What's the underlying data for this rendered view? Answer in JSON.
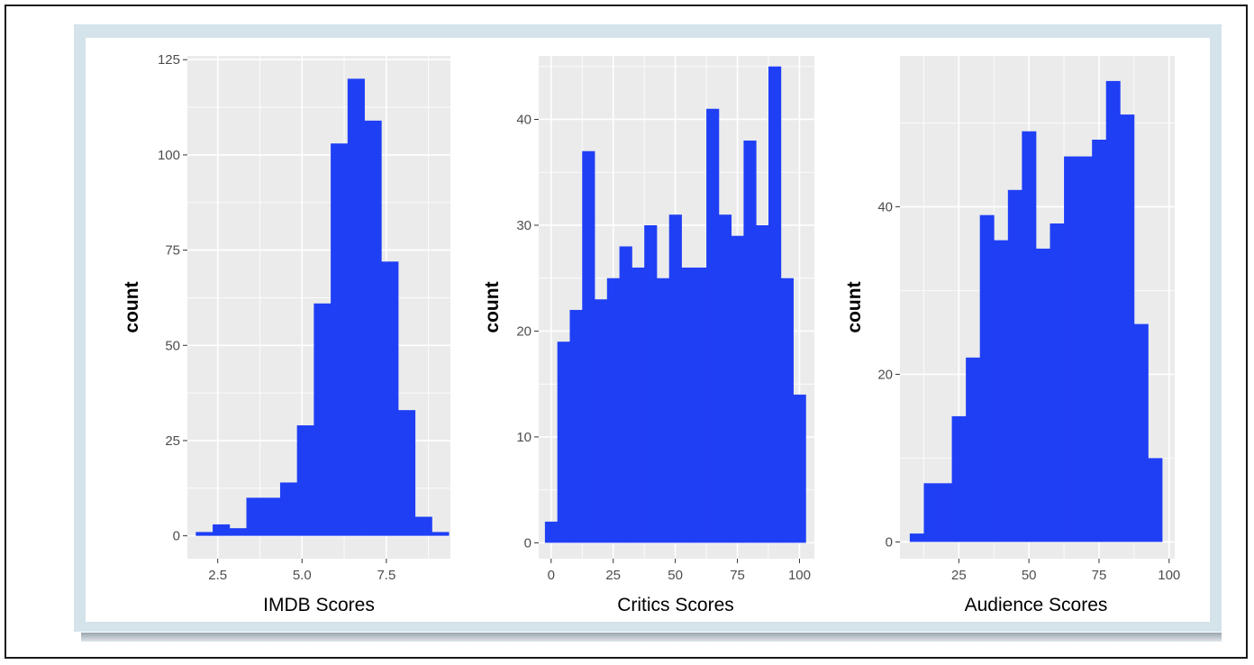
{
  "colors": {
    "bar": "#1f3ff5",
    "panel_bg": "#ebebeb",
    "grid": "#ffffff",
    "card": "#d5e3ea"
  },
  "chart_data": [
    {
      "type": "bar",
      "title": "",
      "xlabel": "IMDB Scores",
      "ylabel": "count",
      "xlim": [
        1.6,
        9.4
      ],
      "ylim": [
        -6,
        126
      ],
      "xticks": [
        2.5,
        5.0,
        7.5
      ],
      "xtick_labels": [
        "2.5",
        "5.0",
        "7.5"
      ],
      "yticks": [
        0,
        25,
        50,
        75,
        100,
        125
      ],
      "ytick_labels": [
        "0",
        "25",
        "50",
        "75",
        "100",
        "125"
      ],
      "grid": true,
      "bin_width": 0.5,
      "bin_starts": [
        1.85,
        2.35,
        2.85,
        3.35,
        3.85,
        4.35,
        4.85,
        5.35,
        5.85,
        6.35,
        6.85,
        7.35,
        7.85,
        8.35,
        8.85
      ],
      "values": [
        1,
        3,
        2,
        10,
        10,
        14,
        29,
        61,
        103,
        120,
        109,
        72,
        33,
        5,
        1
      ]
    },
    {
      "type": "bar",
      "title": "",
      "xlabel": "Critics Scores",
      "ylabel": "count",
      "xlim": [
        -5,
        106
      ],
      "ylim": [
        -1.5,
        46
      ],
      "xticks": [
        0,
        25,
        50,
        75,
        100
      ],
      "xtick_labels": [
        "0",
        "25",
        "50",
        "75",
        "100"
      ],
      "yticks": [
        0,
        10,
        20,
        30,
        40
      ],
      "ytick_labels": [
        "0",
        "10",
        "20",
        "30",
        "40"
      ],
      "grid": true,
      "bin_width": 5,
      "bin_starts": [
        -2.5,
        2.5,
        7.5,
        12.5,
        17.5,
        22.5,
        27.5,
        32.5,
        37.5,
        42.5,
        47.5,
        52.5,
        57.5,
        62.5,
        67.5,
        72.5,
        77.5,
        82.5,
        87.5,
        92.5,
        97.5
      ],
      "values": [
        2,
        19,
        22,
        37,
        23,
        25,
        28,
        26,
        30,
        25,
        31,
        26,
        26,
        41,
        31,
        29,
        38,
        30,
        45,
        25,
        14
      ]
    },
    {
      "type": "bar",
      "title": "",
      "xlabel": "Audience Scores",
      "ylabel": "count",
      "xlim": [
        4,
        102
      ],
      "ylim": [
        -2,
        58
      ],
      "xticks": [
        25,
        50,
        75,
        100
      ],
      "xtick_labels": [
        "25",
        "50",
        "75",
        "100"
      ],
      "yticks": [
        0,
        20,
        40
      ],
      "ytick_labels": [
        "0",
        "20",
        "40"
      ],
      "grid": true,
      "bin_width": 5,
      "bin_starts": [
        7.5,
        12.5,
        17.5,
        22.5,
        27.5,
        32.5,
        37.5,
        42.5,
        47.5,
        52.5,
        57.5,
        62.5,
        67.5,
        72.5,
        77.5,
        82.5,
        87.5,
        92.5
      ],
      "values": [
        1,
        7,
        7,
        15,
        22,
        39,
        36,
        42,
        49,
        35,
        38,
        46,
        46,
        48,
        55,
        51,
        26,
        10
      ]
    }
  ]
}
